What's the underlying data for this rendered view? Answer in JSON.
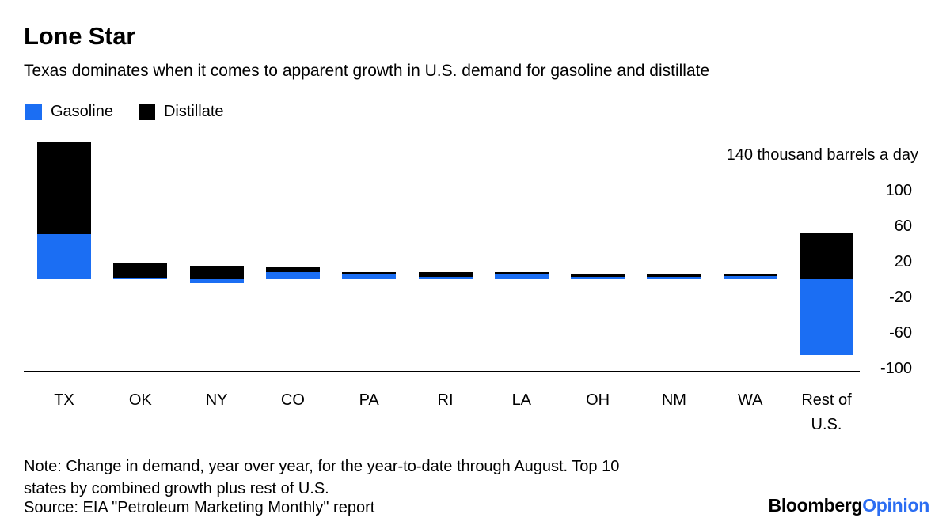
{
  "header": {
    "title": "Lone Star",
    "subtitle": "Texas dominates when it comes to apparent growth in U.S. demand for gasoline and distillate"
  },
  "chart_data": {
    "type": "bar",
    "stacked": true,
    "title": "Lone Star",
    "subtitle": "Texas dominates when it comes to apparent growth in U.S. demand for gasoline and distillate",
    "unit_label": "140 thousand barrels a day",
    "categories": [
      "TX",
      "OK",
      "NY",
      "CO",
      "PA",
      "RI",
      "LA",
      "OH",
      "NM",
      "WA",
      "Rest of U.S."
    ],
    "series": [
      {
        "name": "Gasoline",
        "color": "#1b6ef3",
        "values": [
          51,
          1,
          -4,
          8,
          5,
          3,
          5,
          3,
          3,
          4,
          -85
        ]
      },
      {
        "name": "Distillate",
        "color": "#000000",
        "values": [
          104,
          17,
          15,
          5,
          3,
          5,
          3,
          2,
          2,
          1,
          52
        ]
      }
    ],
    "yticks": [
      100,
      60,
      20,
      -20,
      -60,
      -100
    ],
    "ylim": [
      -100,
      155
    ],
    "grid": false,
    "legend_position": "top-left",
    "value_unit": "thousand barrels a day"
  },
  "footer": {
    "note_line_1": "Note: Change in demand, year over year, for the year-to-date through August. Top 10",
    "note_line_2": "states by combined growth plus rest of U.S.",
    "source": "Source: EIA \"Petroleum Marketing Monthly\" report",
    "logo": {
      "brand": "Bloomberg",
      "suffix": "Opinion"
    }
  }
}
